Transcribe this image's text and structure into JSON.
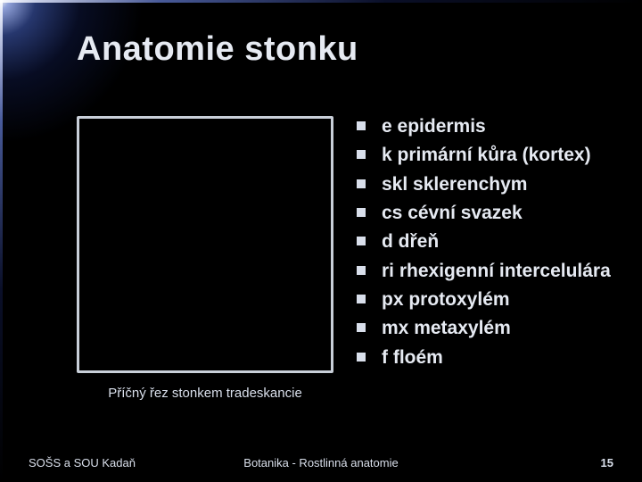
{
  "title": "Anatomie stonku",
  "figure": {
    "caption": "Příčný řez stonkem tradeskancie",
    "border_color": "#c9cfd9",
    "background_color": "#000000"
  },
  "legend": {
    "items": [
      {
        "abbr": "e",
        "term": "epidermis"
      },
      {
        "abbr": "k",
        "term": "primární kůra (kortex)"
      },
      {
        "abbr": "skl",
        "term": "sklerenchym"
      },
      {
        "abbr": "cs",
        "term": "cévní svazek"
      },
      {
        "abbr": "d",
        "term": "dřeň"
      },
      {
        "abbr": "ri",
        "term": "rhexigenní intercelulára"
      },
      {
        "abbr": "px",
        "term": "protoxylém"
      },
      {
        "abbr": "mx",
        "term": "metaxylém"
      },
      {
        "abbr": "f",
        "term": "floém"
      }
    ],
    "bullet_color": "#d9dfeb",
    "text_color": "#e6eaf2",
    "font_size_pt": 16
  },
  "footer": {
    "left": "SOŠS a SOU Kadaň",
    "center": "Botanika - Rostlinná anatomie",
    "page": "15"
  },
  "style": {
    "background_color": "#000000",
    "title_color": "#e6eaf2",
    "title_font_size_pt": 29,
    "body_font_family": "Tahoma",
    "accent_glow_color": "#3a54c8"
  }
}
